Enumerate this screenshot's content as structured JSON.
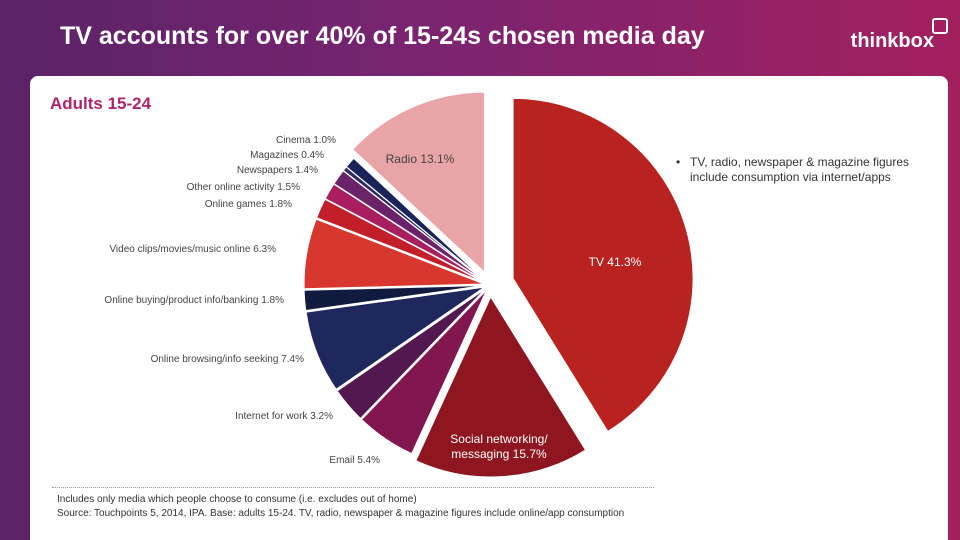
{
  "header": {
    "title": "TV accounts for over 40% of 15-24s chosen media day",
    "logo": "thinkbox"
  },
  "subtitle": "Adults 15-24",
  "note": "TV, radio, newspaper & magazine  figures include consumption via internet/apps",
  "footnote": {
    "line1": "Includes only media which people choose to consume (i.e. excludes out of home)",
    "line2": "Source: Touchpoints 5, 2014, IPA.  Base:  adults 15-24. TV, radio, newspaper & magazine figures include online/app consumption"
  },
  "colors": {
    "accent": "#b0236a"
  },
  "chart_data": {
    "type": "pie",
    "title": "Adults 15-24",
    "slices": [
      {
        "label": "TV 41.3%",
        "value": 41.3,
        "color": "#b8221f",
        "inside": true,
        "textColor": "#ffffff"
      },
      {
        "label": "Social networking/ messaging 15.7%",
        "value": 15.7,
        "color": "#8e1620",
        "inside": true,
        "textColor": "#ffffff"
      },
      {
        "label": "Email 5.4%",
        "value": 5.4,
        "color": "#82164f",
        "inside": false
      },
      {
        "label": "Internet for work 3.2%",
        "value": 3.2,
        "color": "#52184f",
        "inside": false
      },
      {
        "label": "Online browsing/info seeking 7.4%",
        "value": 7.4,
        "color": "#20275d",
        "inside": false
      },
      {
        "label": "Online buying/product info/banking 1.8%",
        "value": 1.8,
        "color": "#111b3f",
        "inside": false
      },
      {
        "label": "Video clips/movies/music online 6.3%",
        "value": 6.3,
        "color": "#d7372e",
        "inside": false
      },
      {
        "label": "Online games 1.8%",
        "value": 1.8,
        "color": "#c21f2a",
        "inside": false
      },
      {
        "label": "Other online activity 1.5%",
        "value": 1.5,
        "color": "#a81e5e",
        "inside": false
      },
      {
        "label": "Newspapers 1.4%",
        "value": 1.4,
        "color": "#6a2268",
        "inside": false
      },
      {
        "label": "Magazines 0.4%",
        "value": 0.4,
        "color": "#2f2a66",
        "inside": false
      },
      {
        "label": "Cinema 1.0%",
        "value": 1.0,
        "color": "#1b2458",
        "inside": false
      },
      {
        "label": "Radio 13.1%",
        "value": 13.1,
        "color": "#e8a4a6",
        "inside": true,
        "textColor": "#444444"
      }
    ]
  }
}
